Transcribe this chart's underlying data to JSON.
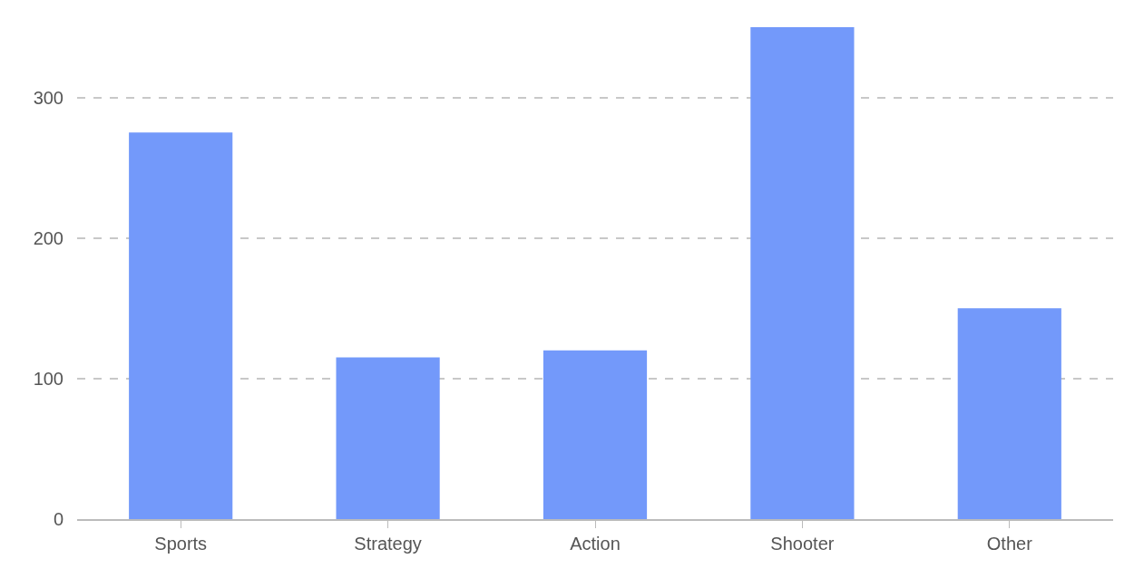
{
  "chart_data": {
    "type": "bar",
    "categories": [
      "Sports",
      "Strategy",
      "Action",
      "Shooter",
      "Other"
    ],
    "values": [
      275,
      115,
      120,
      350,
      150
    ],
    "color": "#7399fa",
    "ylim": [
      0,
      350
    ],
    "yticks": [
      0,
      100,
      200,
      300
    ],
    "grid": "y"
  }
}
